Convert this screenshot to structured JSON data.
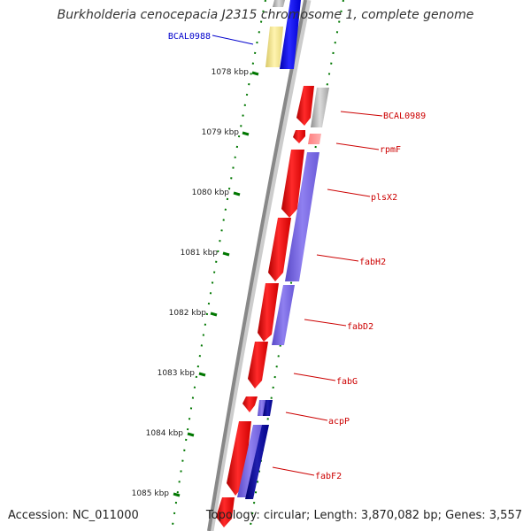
{
  "title": "Burkholderia cenocepacia J2315 chromosome 1, complete genome",
  "accession": "Accession: NC_011000",
  "summary": "Topology: circular; Length: 3,870,082 bp; Genes: 3,557",
  "ticks": [
    "1078 kbp",
    "1079 kbp",
    "1080 kbp",
    "1081 kbp",
    "1082 kbp",
    "1083 kbp",
    "1084 kbp",
    "1085 kbp"
  ],
  "genes": [
    {
      "name": "BCAL0988",
      "color": "#0000cc",
      "strand": "forward"
    },
    {
      "name": "BCAL0989",
      "color": "#cc0000",
      "strand": "reverse"
    },
    {
      "name": "rpmF",
      "color": "#cc0000",
      "strand": "reverse"
    },
    {
      "name": "plsX2",
      "color": "#cc0000",
      "strand": "reverse"
    },
    {
      "name": "fabH2",
      "color": "#cc0000",
      "strand": "reverse"
    },
    {
      "name": "fabD2",
      "color": "#cc0000",
      "strand": "reverse"
    },
    {
      "name": "fabG",
      "color": "#cc0000",
      "strand": "reverse"
    },
    {
      "name": "acpP",
      "color": "#cc0000",
      "strand": "reverse"
    },
    {
      "name": "fabF2",
      "color": "#cc0000",
      "strand": "reverse"
    }
  ],
  "colors": {
    "forward_gene": "#0000ff",
    "reverse_gene": "#ff0000",
    "cog_purple": "#7a6ae0",
    "cog_navy": "#000088",
    "cog_gray": "#b0b0b0",
    "cog_yellow": "#f0e08a",
    "backbone": "#888888",
    "ticks": "#007700"
  }
}
